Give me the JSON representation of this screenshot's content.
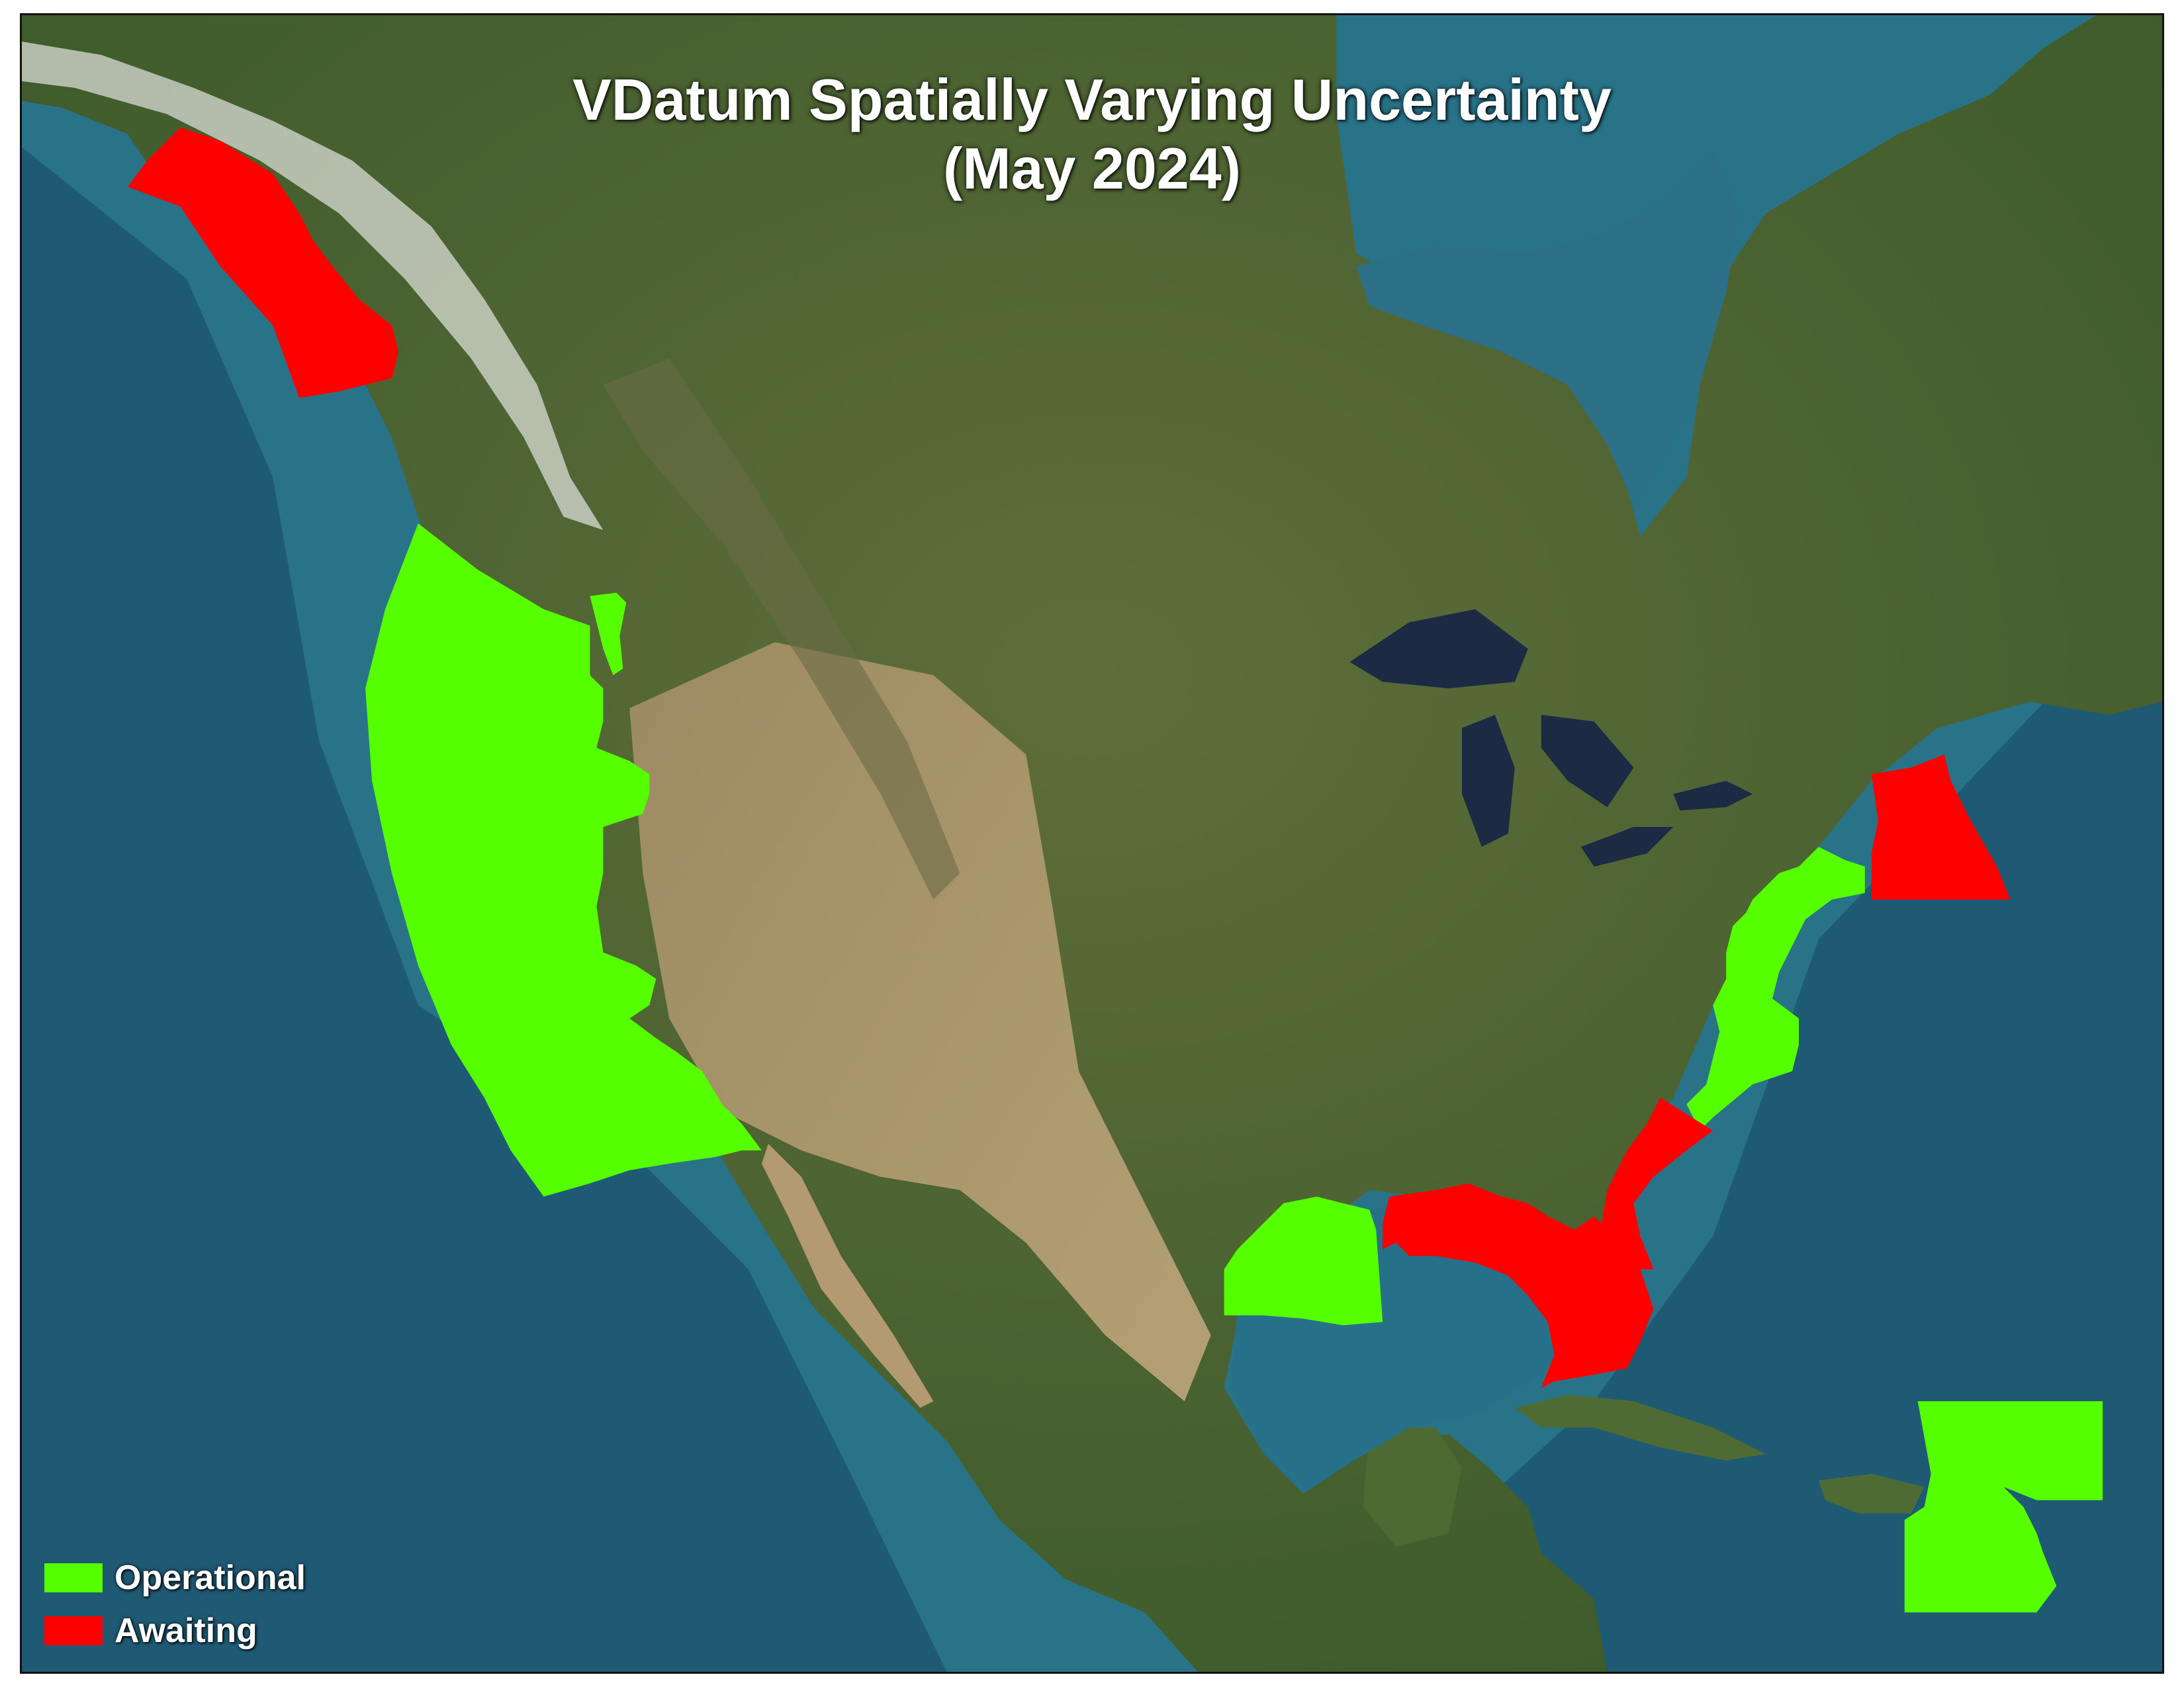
{
  "map": {
    "title_line1": "VDatum Spatially Varying Uncertainty",
    "title_line2": "(May 2024)",
    "basemap": "satellite-imagery-north-america"
  },
  "legend": {
    "items": [
      {
        "key": "operational",
        "label": "Operational",
        "color": "#55ff00"
      },
      {
        "key": "awaiting",
        "label": "Awaiting",
        "color": "#ff0000"
      }
    ]
  },
  "regions": [
    {
      "name": "Southeast Alaska",
      "status": "Awaiting"
    },
    {
      "name": "West Coast (Washington, Oregon, California)",
      "status": "Operational"
    },
    {
      "name": "Puget Sound",
      "status": "Operational"
    },
    {
      "name": "Gulf of Maine",
      "status": "Awaiting"
    },
    {
      "name": "Mid-Atlantic / Northeast",
      "status": "Operational"
    },
    {
      "name": "South Atlantic",
      "status": "Awaiting"
    },
    {
      "name": "Florida / Eastern Gulf",
      "status": "Awaiting"
    },
    {
      "name": "Western Gulf (Texas / Louisiana)",
      "status": "Operational"
    },
    {
      "name": "Puerto Rico / Virgin Islands",
      "status": "Operational"
    }
  ]
}
